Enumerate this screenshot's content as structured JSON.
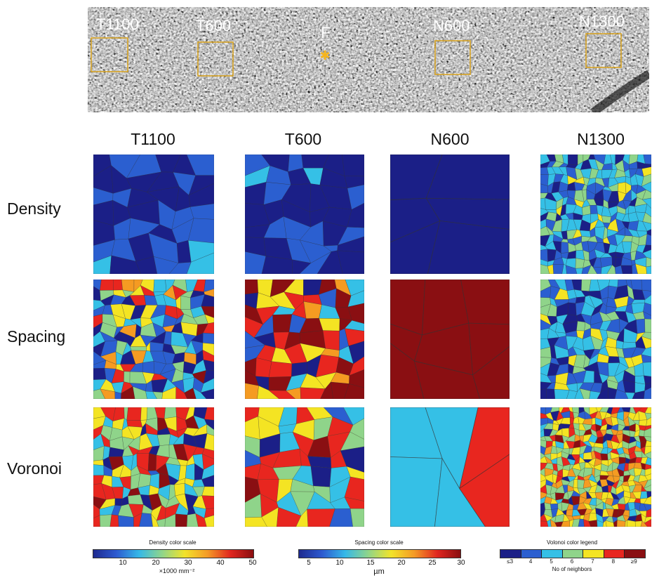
{
  "strip": {
    "regions": [
      "T1100",
      "T600",
      "F",
      "N600",
      "N1300"
    ]
  },
  "columns": [
    "T1100",
    "T600",
    "N600",
    "N1300"
  ],
  "rows": [
    "Density",
    "Spacing",
    "Voronoi"
  ],
  "legends": {
    "density": {
      "title": "Density color scale",
      "ticks": [
        "10",
        "20",
        "30",
        "40",
        "50"
      ],
      "unit": "×1000 mm⁻²"
    },
    "spacing": {
      "title": "Spacing color scale",
      "ticks": [
        "5",
        "10",
        "15",
        "20",
        "25",
        "30"
      ],
      "unit": "µm"
    },
    "voronoi": {
      "title": "Volonoi color legend",
      "ticks": [
        "≤3",
        "4",
        "5",
        "6",
        "7",
        "8",
        "≥9"
      ],
      "unit": "No of neighbors",
      "colors": [
        "#1b1f87",
        "#2b5fd0",
        "#35c0e6",
        "#8fd48a",
        "#f4e423",
        "#e8261f",
        "#8a0f12"
      ]
    }
  },
  "colors": {
    "box": "#d9a21b",
    "density_bg": "#2432a0",
    "spacing_dark": "#8a0e10",
    "voronoi_red": "#e8261f"
  }
}
